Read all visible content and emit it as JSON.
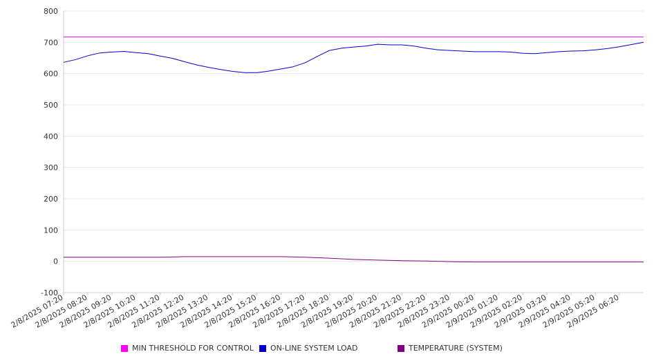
{
  "chart_data": {
    "type": "line",
    "ylim": [
      -100,
      800
    ],
    "yticks": [
      800,
      700,
      600,
      500,
      400,
      300,
      200,
      100,
      0,
      -100
    ],
    "xticks": [
      "2/8/2025 07:20",
      "2/8/2025 08:20",
      "2/8/2025 09:20",
      "2/8/2025 10:20",
      "2/8/2025 11:20",
      "2/8/2025 12:20",
      "2/8/2025 13:20",
      "2/8/2025 14:20",
      "2/8/2025 15:20",
      "2/8/2025 16:20",
      "2/8/2025 17:20",
      "2/8/2025 18:20",
      "2/8/2025 19:20",
      "2/8/2025 20:20",
      "2/8/2025 21:20",
      "2/8/2025 22:20",
      "2/8/2025 23:20",
      "2/9/2025 00:20",
      "2/9/2025 01:20",
      "2/9/2025 02:20",
      "2/9/2025 03:20",
      "2/9/2025 04:20",
      "2/9/2025 05:20",
      "2/9/2025 06:20"
    ],
    "grid": true,
    "legend_position": "bottom",
    "series": [
      {
        "name": "MIN THRESHOLD FOR CONTROL",
        "color": "#ff00ff",
        "x": [
          "2/8/2025 07:20",
          "2/9/2025 07:20"
        ],
        "values": [
          717,
          717
        ]
      },
      {
        "name": "ON-LINE SYSTEM LOAD",
        "color": "#0000cc",
        "x": [
          "2/8/2025 07:20",
          "2/8/2025 07:50",
          "2/8/2025 08:20",
          "2/8/2025 08:50",
          "2/8/2025 09:20",
          "2/8/2025 09:50",
          "2/8/2025 10:20",
          "2/8/2025 10:50",
          "2/8/2025 11:20",
          "2/8/2025 11:50",
          "2/8/2025 12:20",
          "2/8/2025 12:50",
          "2/8/2025 13:20",
          "2/8/2025 13:50",
          "2/8/2025 14:20",
          "2/8/2025 14:50",
          "2/8/2025 15:20",
          "2/8/2025 15:50",
          "2/8/2025 16:20",
          "2/8/2025 16:50",
          "2/8/2025 17:20",
          "2/8/2025 17:50",
          "2/8/2025 18:20",
          "2/8/2025 18:50",
          "2/8/2025 19:20",
          "2/8/2025 19:50",
          "2/8/2025 20:20",
          "2/8/2025 20:50",
          "2/8/2025 21:20",
          "2/8/2025 21:50",
          "2/8/2025 22:20",
          "2/8/2025 22:50",
          "2/8/2025 23:20",
          "2/8/2025 23:50",
          "2/9/2025 00:20",
          "2/9/2025 00:50",
          "2/9/2025 01:20",
          "2/9/2025 01:50",
          "2/9/2025 02:20",
          "2/9/2025 02:50",
          "2/9/2025 03:20",
          "2/9/2025 03:50",
          "2/9/2025 04:20",
          "2/9/2025 04:50",
          "2/9/2025 05:20",
          "2/9/2025 05:50",
          "2/9/2025 06:20",
          "2/9/2025 06:50",
          "2/9/2025 07:20"
        ],
        "values": [
          636,
          645,
          657,
          666,
          669,
          671,
          667,
          664,
          656,
          649,
          638,
          628,
          620,
          613,
          607,
          603,
          603,
          608,
          615,
          622,
          635,
          655,
          674,
          681,
          685,
          688,
          694,
          692,
          692,
          688,
          681,
          676,
          674,
          672,
          670,
          670,
          670,
          669,
          665,
          664,
          667,
          670,
          672,
          673,
          676,
          680,
          686,
          693,
          700
        ]
      },
      {
        "name": "TEMPERATURE (SYSTEM)",
        "color": "#800080",
        "x": [
          "2/8/2025 07:20",
          "2/8/2025 08:20",
          "2/8/2025 09:20",
          "2/8/2025 10:20",
          "2/8/2025 11:20",
          "2/8/2025 12:20",
          "2/8/2025 13:20",
          "2/8/2025 14:20",
          "2/8/2025 15:20",
          "2/8/2025 16:20",
          "2/8/2025 17:20",
          "2/8/2025 18:20",
          "2/8/2025 19:20",
          "2/8/2025 20:20",
          "2/8/2025 21:20",
          "2/8/2025 22:20",
          "2/8/2025 23:20",
          "2/9/2025 00:20",
          "2/9/2025 01:20",
          "2/9/2025 02:20",
          "2/9/2025 03:20",
          "2/9/2025 04:20",
          "2/9/2025 05:20",
          "2/9/2025 06:20",
          "2/9/2025 07:20"
        ],
        "values": [
          13,
          13,
          13,
          13,
          13,
          15,
          15,
          15,
          15,
          15,
          13,
          10,
          6,
          4,
          2,
          1,
          -1,
          -2,
          -2,
          -2,
          -2,
          -2,
          -2,
          -2,
          -2
        ]
      }
    ]
  }
}
